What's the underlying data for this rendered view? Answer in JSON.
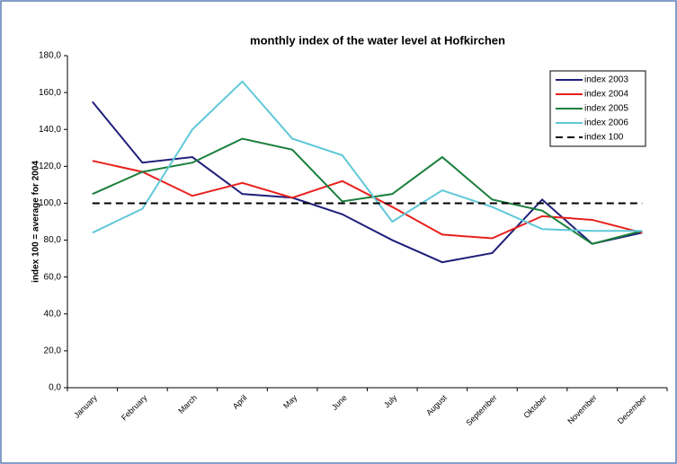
{
  "chart_data": {
    "type": "line",
    "title": "monthly index of the water level at Hofkirchen",
    "y_label": "index 100 = average for 2004",
    "categories": [
      "January",
      "February",
      "March",
      "April",
      "May",
      "June",
      "July",
      "August",
      "September",
      "Oktober",
      "November",
      "December"
    ],
    "series": [
      {
        "name": "index 2003",
        "color": "#1f1f7a",
        "values": [
          155,
          122,
          125,
          105,
          103,
          94,
          80,
          68,
          73,
          102,
          78,
          84
        ]
      },
      {
        "name": "index 2004",
        "color": "#e8201c",
        "values": [
          123,
          117,
          104,
          111,
          103,
          112,
          98,
          83,
          81,
          93,
          91,
          84
        ]
      },
      {
        "name": "index 2005",
        "color": "#1a7f3c",
        "values": [
          105,
          117,
          122,
          135,
          129,
          101,
          105,
          125,
          102,
          96,
          78,
          85
        ]
      },
      {
        "name": "index 2006",
        "color": "#5fc8d8",
        "values": [
          84,
          97,
          140,
          166,
          135,
          126,
          90,
          107,
          98,
          86,
          85,
          85
        ]
      },
      {
        "name": "index 100",
        "color": "#000000",
        "dashed": true,
        "values": [
          100,
          100,
          100,
          100,
          100,
          100,
          100,
          100,
          100,
          100,
          100,
          100
        ]
      }
    ],
    "ylim": [
      0,
      180
    ],
    "yticks": [
      {
        "value": 0,
        "label": "0,0"
      },
      {
        "value": 20,
        "label": "20,0"
      },
      {
        "value": 40,
        "label": "40,0"
      },
      {
        "value": 60,
        "label": "60,0"
      },
      {
        "value": 80,
        "label": "80,0"
      },
      {
        "value": 100,
        "label": "100,0"
      },
      {
        "value": 120,
        "label": "120,0"
      },
      {
        "value": 140,
        "label": "140,0"
      },
      {
        "value": 160,
        "label": "160,0"
      },
      {
        "value": 180,
        "label": "180,0"
      }
    ],
    "legend": "top-right"
  }
}
